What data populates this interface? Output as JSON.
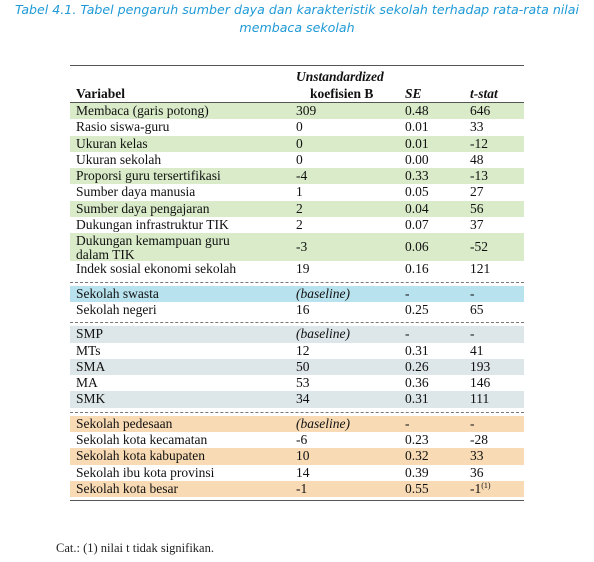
{
  "caption": {
    "line1": "Tabel 4.1. Tabel pengaruh sumber daya dan karakteristik sekolah terhadap rata-rata nilai",
    "line2": "membaca sekolah"
  },
  "header": {
    "variabel": "Variabel",
    "coef_line1": "Unstandardized",
    "coef_line2": "koefisien B",
    "se": "SE",
    "t": "t-stat"
  },
  "groups": [
    {
      "color": "#d9ebc9",
      "rows": [
        {
          "var": "Membaca (garis potong)",
          "coef": "309",
          "se": "0.48",
          "t": "646",
          "shaded": true
        },
        {
          "var": "Rasio siswa-guru",
          "coef": "0",
          "se": "0.01",
          "t": "33",
          "shaded": false
        },
        {
          "var": "Ukuran kelas",
          "coef": "0",
          "se": "0.01",
          "t": "-12",
          "shaded": true
        },
        {
          "var": "Ukuran sekolah",
          "coef": "0",
          "se": "0.00",
          "t": "48",
          "shaded": false
        },
        {
          "var": "Proporsi guru tersertifikasi",
          "coef": "-4",
          "se": "0.33",
          "t": "-13",
          "shaded": true
        },
        {
          "var": "Sumber daya manusia",
          "coef": "1",
          "se": "0.05",
          "t": "27",
          "shaded": false
        },
        {
          "var": "Sumber daya pengajaran",
          "coef": "2",
          "se": "0.04",
          "t": "56",
          "shaded": true
        },
        {
          "var": "Dukungan infrastruktur TIK",
          "coef": "2",
          "se": "0.07",
          "t": "37",
          "shaded": false
        },
        {
          "var": "Dukungan kemampuan guru dalam TIK",
          "coef": "-3",
          "se": "0.06",
          "t": "-52",
          "shaded": true
        },
        {
          "var": "Indek sosial ekonomi sekolah",
          "coef": "19",
          "se": "0.16",
          "t": "121",
          "shaded": false
        }
      ]
    },
    {
      "color": "#b8e2ee",
      "rows": [
        {
          "var": "Sekolah swasta",
          "coef": "(baseline)",
          "se": "-",
          "t": "-",
          "shaded": true
        },
        {
          "var": "Sekolah negeri",
          "coef": "16",
          "se": "0.25",
          "t": "65",
          "shaded": false
        }
      ]
    },
    {
      "color": "#dde6e8",
      "rows": [
        {
          "var": "SMP",
          "coef": "(baseline)",
          "se": "-",
          "t": "-",
          "shaded": true
        },
        {
          "var": "MTs",
          "coef": "12",
          "se": "0.31",
          "t": "41",
          "shaded": false
        },
        {
          "var": "SMA",
          "coef": "50",
          "se": "0.26",
          "t": "193",
          "shaded": true
        },
        {
          "var": "MA",
          "coef": "53",
          "se": "0.36",
          "t": "146",
          "shaded": false
        },
        {
          "var": "SMK",
          "coef": "34",
          "se": "0.31",
          "t": "111",
          "shaded": true
        }
      ]
    },
    {
      "color": "#f8dbb5",
      "rows": [
        {
          "var": "Sekolah pedesaan",
          "coef": "(baseline)",
          "se": "-",
          "t": "-",
          "shaded": true
        },
        {
          "var": "Sekolah kota kecamatan",
          "coef": "-6",
          "se": "0.23",
          "t": "-28",
          "shaded": false
        },
        {
          "var": "Sekolah kota kabupaten",
          "coef": "10",
          "se": "0.32",
          "t": "33",
          "shaded": true
        },
        {
          "var": "Sekolah ibu kota provinsi",
          "coef": "14",
          "se": "0.39",
          "t": "36",
          "shaded": false
        },
        {
          "var": "Sekolah kota besar",
          "coef": "-1",
          "se": "0.55",
          "t": "-1",
          "t_sup": "(1)",
          "shaded": true
        }
      ]
    }
  ],
  "note": "Cat.: (1) nilai t tidak signifikan."
}
